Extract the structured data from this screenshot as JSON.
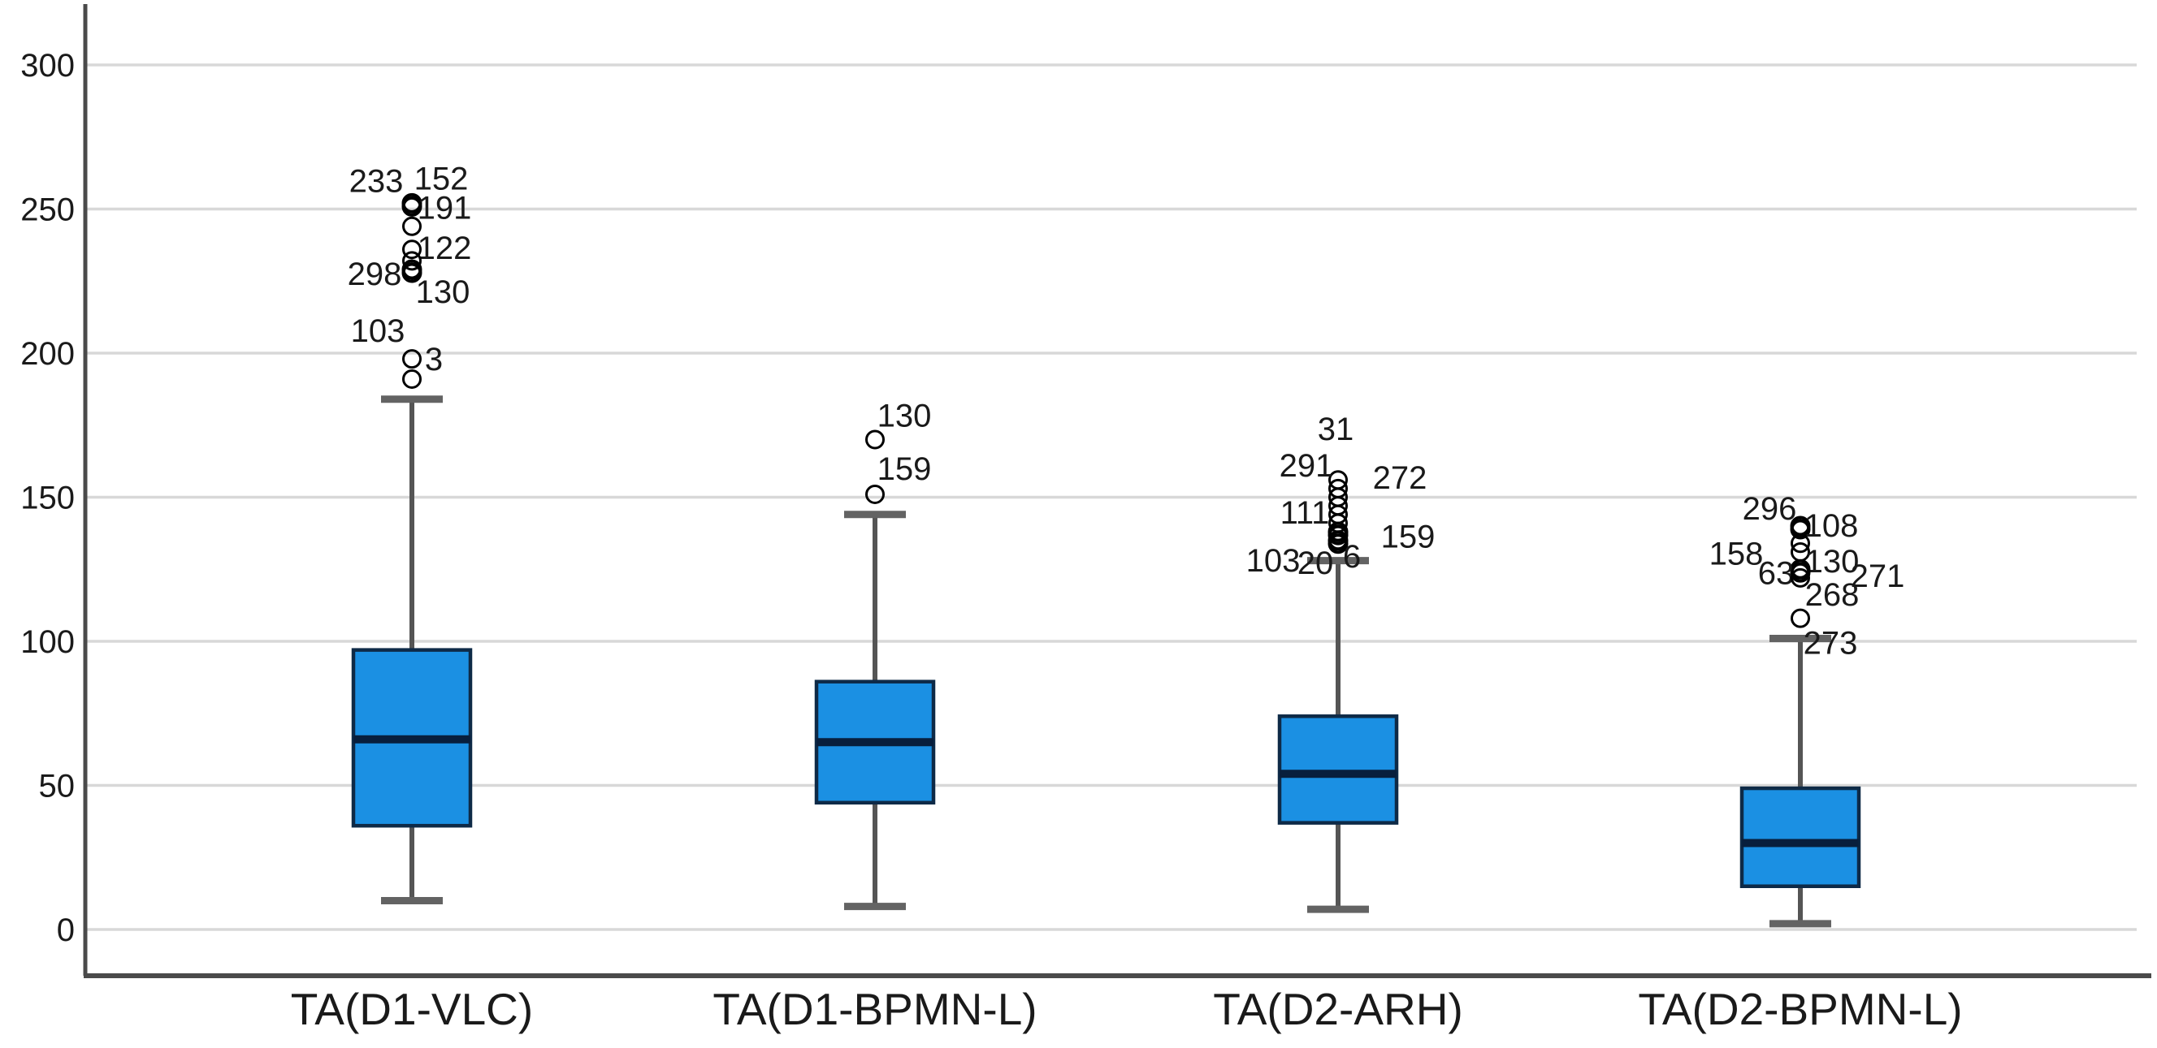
{
  "chart_data": {
    "type": "boxplot",
    "title": "",
    "xlabel": "",
    "ylabel": "",
    "grid": true,
    "legend": false,
    "ylim": [
      -16,
      322
    ],
    "yticks": [
      0,
      50,
      100,
      150,
      200,
      250,
      300
    ],
    "categories": [
      "TA(D1-VLC)",
      "TA(D1-BPMN-L)",
      "TA(D2-ARH)",
      "TA(D2-BPMN-L)"
    ],
    "colors": {
      "box_fill": "#1b90e3",
      "box_border": "#0e2a47",
      "median": "#081f3d",
      "whisker": "#555555",
      "whisker_cap": "#636363",
      "gridline": "#d8d8d8",
      "axis": "#4a4a4a",
      "outlier_stroke": "#000000",
      "text": "#1a1a1a"
    },
    "series": [
      {
        "name": "TA(D1-VLC)",
        "whisker_low": 10,
        "q1": 36,
        "median": 66,
        "q3": 97,
        "whisker_high": 184,
        "outliers": [
          {
            "value": 252,
            "bold": true,
            "labels": [
              {
                "text": "233",
                "dx": -44,
                "dy": -27
              },
              {
                "text": "152",
                "dx": 36,
                "dy": -30
              },
              {
                "text": "191",
                "dx": 40,
                "dy": 6
              }
            ]
          },
          {
            "value": 244,
            "bold": false,
            "labels": []
          },
          {
            "value": 236,
            "bold": false,
            "labels": [
              {
                "text": "122",
                "dx": 40,
                "dy": -1
              }
            ]
          },
          {
            "value": 232,
            "bold": false,
            "labels": []
          },
          {
            "value": 229,
            "bold": true,
            "labels": [
              {
                "text": "298",
                "dx": -46,
                "dy": 6
              },
              {
                "text": "130",
                "dx": 38,
                "dy": 28
              }
            ]
          },
          {
            "value": 198,
            "bold": false,
            "labels": [
              {
                "text": "103",
                "dx": -42,
                "dy": -34
              },
              {
                "text": "3",
                "dx": 27,
                "dy": 1
              }
            ]
          },
          {
            "value": 191,
            "bold": false,
            "labels": []
          }
        ]
      },
      {
        "name": "TA(D1-BPMN-L)",
        "whisker_low": 8,
        "q1": 44,
        "median": 65,
        "q3": 86,
        "whisker_high": 144,
        "outliers": [
          {
            "value": 170,
            "bold": false,
            "labels": [
              {
                "text": "130",
                "dx": 36,
                "dy": -29
              }
            ]
          },
          {
            "value": 151,
            "bold": false,
            "labels": [
              {
                "text": "159",
                "dx": 36,
                "dy": -31
              }
            ]
          }
        ]
      },
      {
        "name": "TA(D2-ARH)",
        "whisker_low": 7,
        "q1": 37,
        "median": 54,
        "q3": 74,
        "whisker_high": 128,
        "outliers": [
          {
            "value": 156,
            "bold": false,
            "labels": [
              {
                "text": "31",
                "dx": -3,
                "dy": -62
              },
              {
                "text": "291",
                "dx": -39,
                "dy": -17
              },
              {
                "text": "272",
                "dx": 76,
                "dy": -2
              }
            ]
          },
          {
            "value": 153,
            "bold": false,
            "labels": []
          },
          {
            "value": 150,
            "bold": false,
            "labels": []
          },
          {
            "value": 147,
            "bold": false,
            "labels": [
              {
                "text": "111",
                "dx": -41,
                "dy": 9
              }
            ]
          },
          {
            "value": 144,
            "bold": false,
            "labels": []
          },
          {
            "value": 141,
            "bold": false,
            "labels": [
              {
                "text": "159",
                "dx": 86,
                "dy": 17
              }
            ]
          },
          {
            "value": 138,
            "bold": true,
            "labels": []
          },
          {
            "value": 135,
            "bold": true,
            "labels": [
              {
                "text": "103",
                "dx": -80,
                "dy": 25
              },
              {
                "text": "20",
                "dx": -28,
                "dy": 28
              },
              {
                "text": "6",
                "dx": 17,
                "dy": 20
              }
            ]
          }
        ]
      },
      {
        "name": "TA(D2-BPMN-L)",
        "whisker_low": 2,
        "q1": 15,
        "median": 30,
        "q3": 49,
        "whisker_high": 101,
        "outliers": [
          {
            "value": 140,
            "bold": true,
            "labels": [
              {
                "text": "296",
                "dx": -38,
                "dy": -21
              },
              {
                "text": "108",
                "dx": 38,
                "dy": 0
              }
            ]
          },
          {
            "value": 134,
            "bold": false,
            "labels": [
              {
                "text": "158",
                "dx": -79,
                "dy": 13
              }
            ]
          },
          {
            "value": 131,
            "bold": false,
            "labels": [
              {
                "text": "130",
                "dx": 39,
                "dy": 12
              }
            ]
          },
          {
            "value": 125,
            "bold": true,
            "labels": [
              {
                "text": "63",
                "dx": -30,
                "dy": 5
              }
            ]
          },
          {
            "value": 122,
            "bold": false,
            "labels": [
              {
                "text": "271",
                "dx": 95,
                "dy": -2
              },
              {
                "text": "268",
                "dx": 39,
                "dy": 21
              }
            ]
          },
          {
            "value": 108,
            "bold": false,
            "labels": [
              {
                "text": "273",
                "dx": 37,
                "dy": 31
              }
            ]
          }
        ]
      }
    ]
  }
}
